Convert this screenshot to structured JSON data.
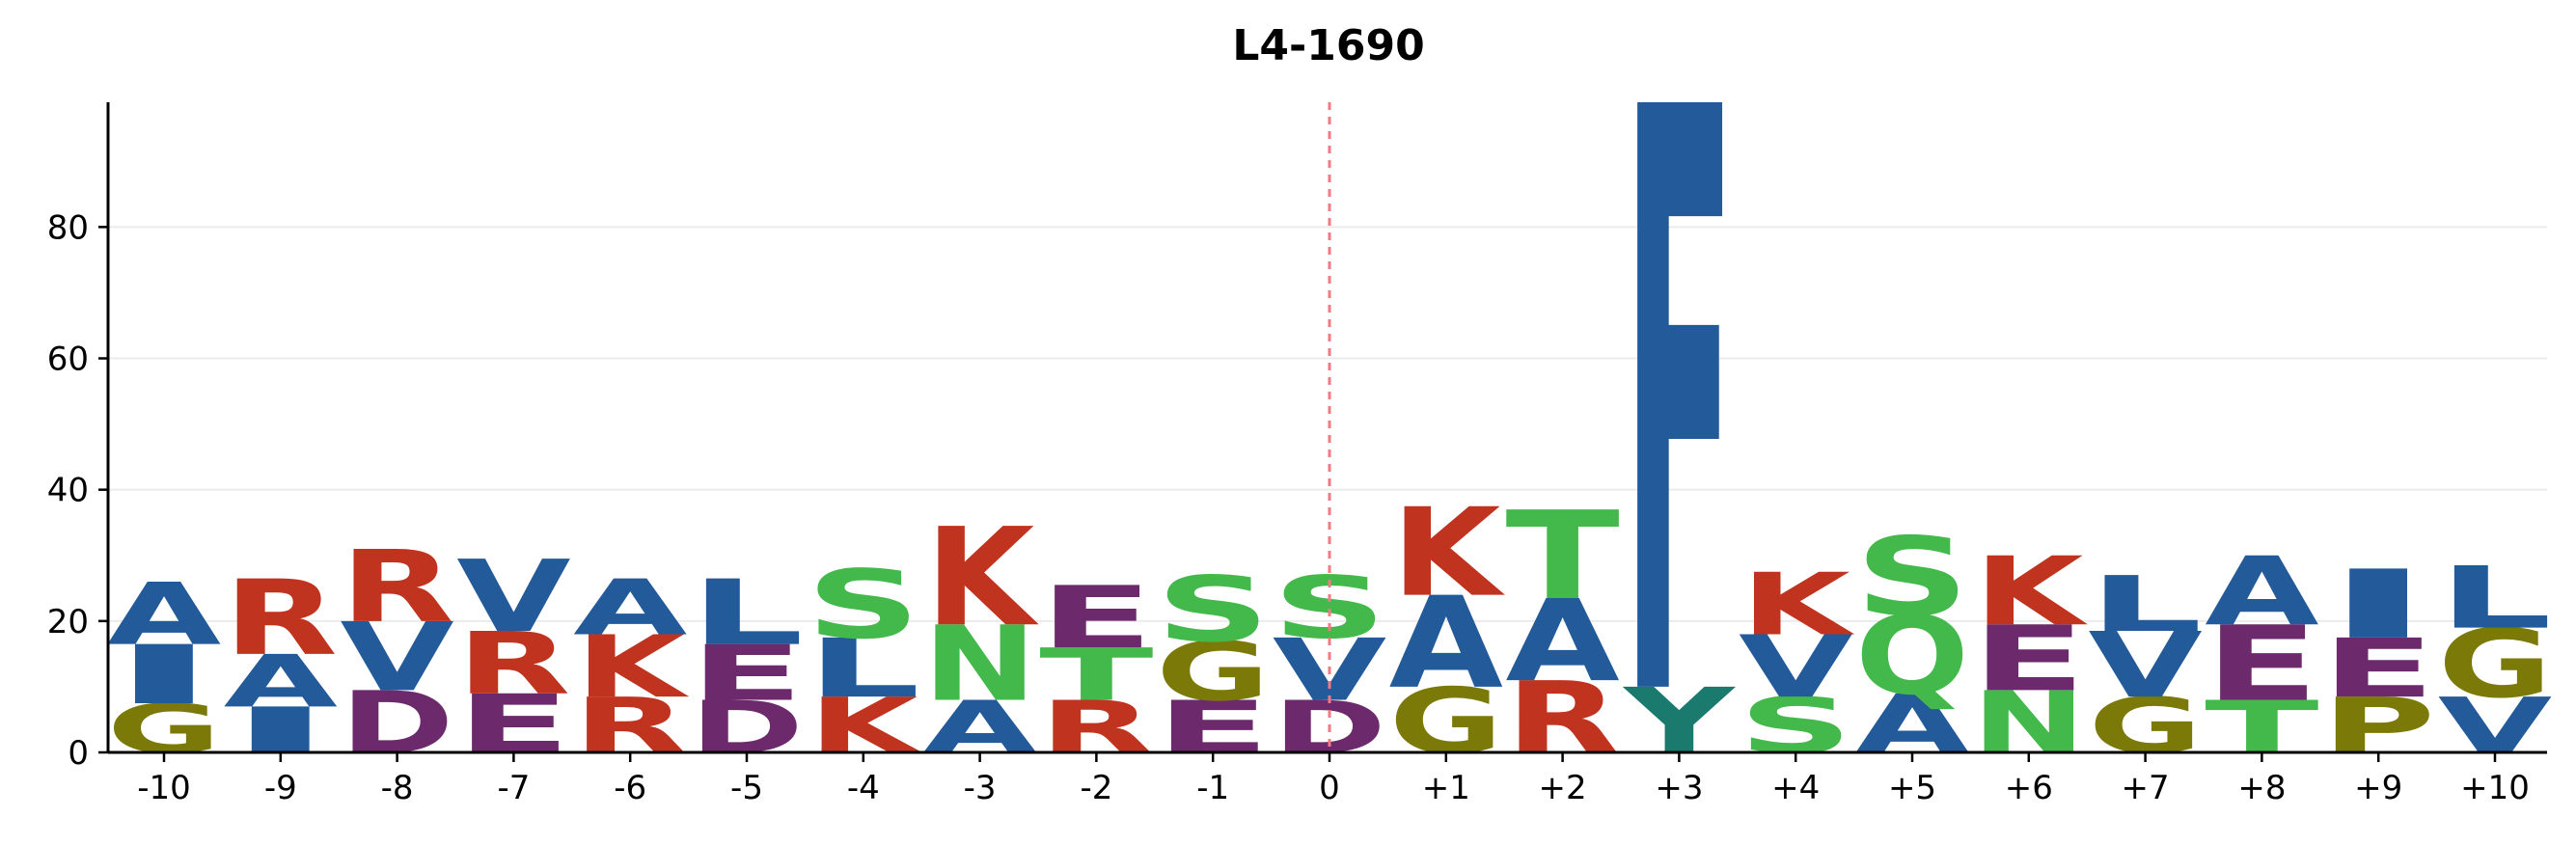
{
  "chart_data": {
    "type": "sequence-logo",
    "title": "L4-1690",
    "xlabel": "",
    "ylabel": "",
    "ylim": [
      0,
      99
    ],
    "yticks": [
      0,
      20,
      40,
      60,
      80
    ],
    "grid": true,
    "center_marker": "0",
    "colors": {
      "blue": "#235a9a",
      "red": "#c0331f",
      "green": "#42b94a",
      "purple": "#6c2a6d",
      "olive": "#7b7a08",
      "teal": "#1a7a6e",
      "marker": "#f27a85"
    },
    "color_map": {
      "A": "blue",
      "I": "blue",
      "L": "blue",
      "V": "blue",
      "F": "blue",
      "R": "red",
      "K": "red",
      "S": "green",
      "T": "green",
      "N": "green",
      "Q": "green",
      "D": "purple",
      "E": "purple",
      "G": "olive",
      "P": "olive",
      "Y": "teal"
    },
    "positions": [
      {
        "label": "-10",
        "stack": [
          [
            "G",
            7.5
          ],
          [
            "I",
            9
          ],
          [
            "A",
            9.5
          ]
        ]
      },
      {
        "label": "-9",
        "stack": [
          [
            "I",
            7
          ],
          [
            "A",
            8
          ],
          [
            "R",
            11.5
          ]
        ]
      },
      {
        "label": "-8",
        "stack": [
          [
            "D",
            9.5
          ],
          [
            "V",
            10.5
          ],
          [
            "R",
            11
          ]
        ]
      },
      {
        "label": "-7",
        "stack": [
          [
            "E",
            9
          ],
          [
            "R",
            9.5
          ],
          [
            "V",
            11
          ]
        ]
      },
      {
        "label": "-6",
        "stack": [
          [
            "R",
            8.5
          ],
          [
            "K",
            9.5
          ],
          [
            "A",
            8.5
          ]
        ]
      },
      {
        "label": "-5",
        "stack": [
          [
            "D",
            8
          ],
          [
            "E",
            8.5
          ],
          [
            "L",
            10
          ]
        ]
      },
      {
        "label": "-4",
        "stack": [
          [
            "K",
            8.5
          ],
          [
            "L",
            9
          ],
          [
            "S",
            10.5
          ]
        ]
      },
      {
        "label": "-3",
        "stack": [
          [
            "A",
            8
          ],
          [
            "N",
            11.5
          ],
          [
            "K",
            15
          ]
        ]
      },
      {
        "label": "-2",
        "stack": [
          [
            "R",
            8
          ],
          [
            "T",
            8
          ],
          [
            "E",
            9.5
          ]
        ]
      },
      {
        "label": "-1",
        "stack": [
          [
            "E",
            8
          ],
          [
            "G",
            9
          ],
          [
            "S",
            10
          ]
        ]
      },
      {
        "label": "0",
        "stack": [
          [
            "D",
            8
          ],
          [
            "V",
            9.5
          ],
          [
            "S",
            9.5
          ]
        ]
      },
      {
        "label": "+1",
        "stack": [
          [
            "G",
            10
          ],
          [
            "A",
            14
          ],
          [
            "K",
            13.5
          ]
        ]
      },
      {
        "label": "+2",
        "stack": [
          [
            "R",
            11
          ],
          [
            "A",
            12.5
          ],
          [
            "T",
            13.5
          ]
        ]
      },
      {
        "label": "+3",
        "stack": [
          [
            "Y",
            10
          ],
          [
            "F",
            89
          ]
        ]
      },
      {
        "label": "+4",
        "stack": [
          [
            "S",
            8.5
          ],
          [
            "V",
            9.5
          ],
          [
            "K",
            9.5
          ]
        ]
      },
      {
        "label": "+5",
        "stack": [
          [
            "A",
            9
          ],
          [
            "Q",
            12
          ],
          [
            "S",
            12
          ]
        ]
      },
      {
        "label": "+6",
        "stack": [
          [
            "N",
            9.5
          ],
          [
            "E",
            10
          ],
          [
            "K",
            10.5
          ]
        ]
      },
      {
        "label": "+7",
        "stack": [
          [
            "G",
            8.5
          ],
          [
            "V",
            10
          ],
          [
            "L",
            8.5
          ]
        ]
      },
      {
        "label": "+8",
        "stack": [
          [
            "T",
            8
          ],
          [
            "E",
            11.5
          ],
          [
            "A",
            10.5
          ]
        ]
      },
      {
        "label": "+9",
        "stack": [
          [
            "P",
            8.5
          ],
          [
            "E",
            9
          ],
          [
            "I",
            10.5
          ]
        ]
      },
      {
        "label": "+10",
        "stack": [
          [
            "V",
            8.5
          ],
          [
            "G",
            10.5
          ],
          [
            "L",
            9.5
          ]
        ]
      }
    ]
  }
}
